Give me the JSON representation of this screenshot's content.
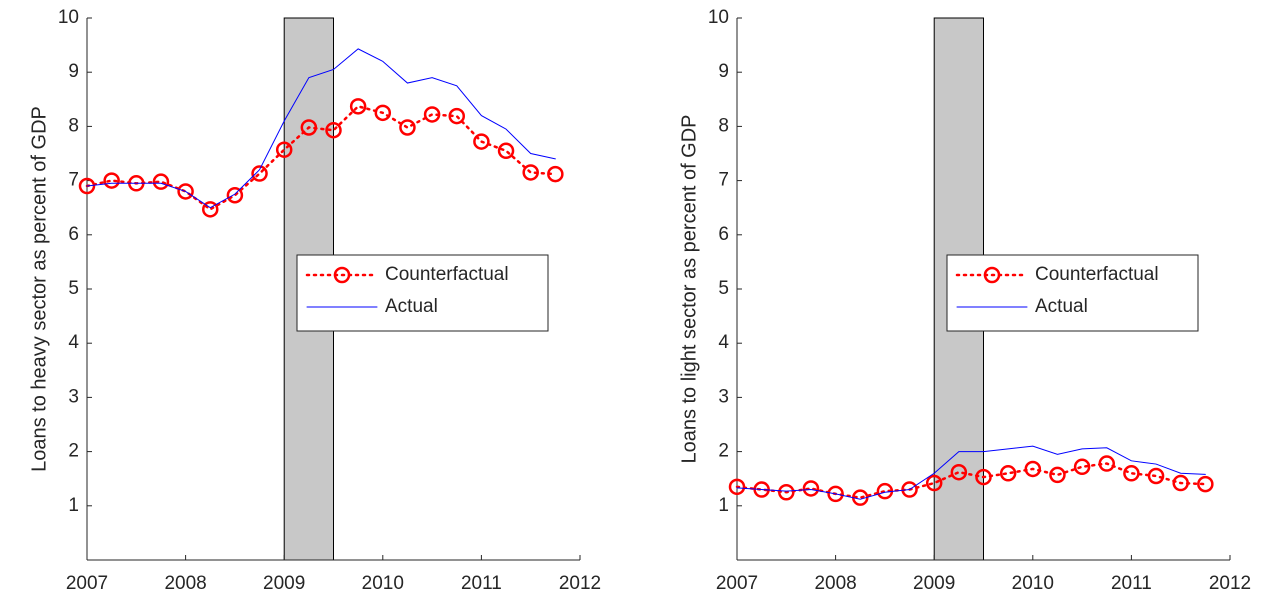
{
  "chart_data": [
    {
      "type": "line",
      "y_label": "Loans to heavy sector as percent of GDP",
      "x": [
        2007,
        2007.25,
        2007.5,
        2007.75,
        2008,
        2008.25,
        2008.5,
        2008.75,
        2009,
        2009.25,
        2009.5,
        2009.75,
        2010,
        2010.25,
        2010.5,
        2010.75,
        2011,
        2011.25,
        2011.5,
        2011.75
      ],
      "series": [
        {
          "name": "Counterfactual",
          "color": "#ff0000",
          "linestyle": "dotted",
          "marker": "circle",
          "values": [
            6.9,
            7.0,
            6.95,
            6.98,
            6.8,
            6.47,
            6.73,
            7.13,
            7.57,
            7.98,
            7.93,
            8.37,
            8.25,
            7.98,
            8.22,
            8.19,
            7.72,
            7.55,
            7.15,
            7.12
          ]
        },
        {
          "name": "Actual",
          "color": "#0000ff",
          "linestyle": "solid",
          "values": [
            6.9,
            6.95,
            6.95,
            6.95,
            6.8,
            6.5,
            6.75,
            7.2,
            8.1,
            8.9,
            9.05,
            9.43,
            9.2,
            8.8,
            8.9,
            8.75,
            8.2,
            7.95,
            7.5,
            7.4
          ]
        }
      ],
      "shaded_x": [
        2009,
        2009.5
      ],
      "xlim": [
        2007,
        2012
      ],
      "xticks": [
        2007,
        2008,
        2009,
        2010,
        2011,
        2012
      ],
      "ylim": [
        0,
        10
      ],
      "yticks": [
        1,
        2,
        3,
        4,
        5,
        6,
        7,
        8,
        9,
        10
      ],
      "legend": "east"
    },
    {
      "type": "line",
      "y_label": "Loans to light sector as percent of GDP",
      "x": [
        2007,
        2007.25,
        2007.5,
        2007.75,
        2008,
        2008.25,
        2008.5,
        2008.75,
        2009,
        2009.25,
        2009.5,
        2009.75,
        2010,
        2010.25,
        2010.5,
        2010.75,
        2011,
        2011.25,
        2011.5,
        2011.75
      ],
      "series": [
        {
          "name": "Counterfactual",
          "color": "#ff0000",
          "linestyle": "dotted",
          "marker": "circle",
          "values": [
            1.35,
            1.3,
            1.25,
            1.32,
            1.22,
            1.15,
            1.27,
            1.3,
            1.42,
            1.62,
            1.53,
            1.6,
            1.68,
            1.57,
            1.72,
            1.78,
            1.6,
            1.55,
            1.42,
            1.4
          ]
        },
        {
          "name": "Actual",
          "color": "#0000ff",
          "linestyle": "solid",
          "values": [
            1.33,
            1.3,
            1.27,
            1.3,
            1.22,
            1.12,
            1.25,
            1.3,
            1.6,
            2.0,
            2.0,
            2.05,
            2.1,
            1.95,
            2.05,
            2.07,
            1.83,
            1.77,
            1.6,
            1.58
          ]
        }
      ],
      "shaded_x": [
        2009,
        2009.5
      ],
      "xlim": [
        2007,
        2012
      ],
      "xticks": [
        2007,
        2008,
        2009,
        2010,
        2011,
        2012
      ],
      "ylim": [
        0,
        10
      ],
      "yticks": [
        1,
        2,
        3,
        4,
        5,
        6,
        7,
        8,
        9,
        10
      ],
      "legend": "east"
    }
  ]
}
